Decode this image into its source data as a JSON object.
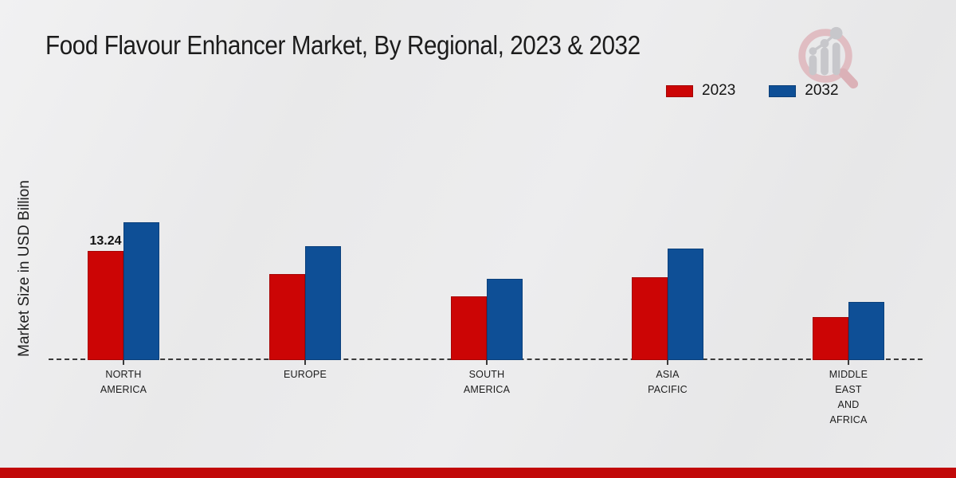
{
  "header": {
    "title": "Food Flavour Enhancer Market, By Regional, 2023 & 2032"
  },
  "legend": {
    "items": [
      {
        "label": "2023",
        "color": "#cc0505"
      },
      {
        "label": "2032",
        "color": "#0e4f96"
      }
    ]
  },
  "axes": {
    "y_label": "Market Size in USD Billion"
  },
  "branding": {
    "logo": "market-research-future-magnifier-logo",
    "footer_color": "#c10808"
  },
  "chart_data": {
    "type": "bar",
    "title": "Food Flavour Enhancer Market, By Regional, 2023 & 2032",
    "categories": [
      "NORTH AMERICA",
      "EUROPE",
      "SOUTH AMERICA",
      "ASIA PACIFIC",
      "MIDDLE EAST AND AFRICA"
    ],
    "series": [
      {
        "name": "2023",
        "color": "#cc0505",
        "values": [
          13.24,
          10.5,
          7.75,
          10.12,
          5.27
        ]
      },
      {
        "name": "2032",
        "color": "#0e4f96",
        "values": [
          16.73,
          13.83,
          9.92,
          13.56,
          7.11
        ]
      }
    ],
    "data_labels": [
      {
        "series_index": 0,
        "category_index": 0,
        "text": "13.24"
      }
    ],
    "xlabel": "",
    "ylabel": "Market Size in USD Billion",
    "ylim": [
      0,
      20
    ],
    "grid": false,
    "legend_position": "top-right",
    "baseline_style": "dashed"
  }
}
